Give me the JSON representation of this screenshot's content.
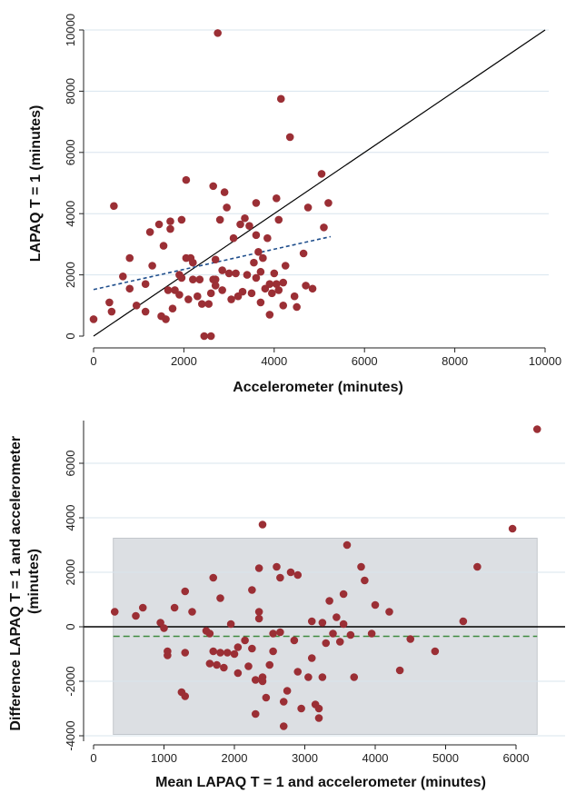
{
  "chart_data": [
    {
      "type": "scatter",
      "title": "",
      "xlabel": "Accelerometer (minutes)",
      "ylabel": "LAPAQ T = 1 (minutes)",
      "xlim": [
        0,
        10000
      ],
      "ylim": [
        0,
        10000
      ],
      "xticks": [
        0,
        2000,
        4000,
        6000,
        8000,
        10000
      ],
      "yticks": [
        0,
        2000,
        4000,
        6000,
        8000,
        10000
      ],
      "grid": true,
      "colors": {
        "points": "#9b2f35",
        "identity_line": "#000000",
        "regression_line": "#1f4e8c"
      },
      "lines": {
        "identity": {
          "x": [
            0,
            10000
          ],
          "y": [
            0,
            10000
          ],
          "style": "solid"
        },
        "regression": {
          "x": [
            0,
            5250
          ],
          "y": [
            1520,
            3250
          ],
          "style": "dashed"
        }
      },
      "points": [
        [
          0,
          550
        ],
        [
          350,
          1100
        ],
        [
          400,
          800
        ],
        [
          450,
          4250
        ],
        [
          650,
          1950
        ],
        [
          800,
          2550
        ],
        [
          800,
          1550
        ],
        [
          950,
          1000
        ],
        [
          1150,
          1700
        ],
        [
          1150,
          800
        ],
        [
          1250,
          3400
        ],
        [
          1300,
          2300
        ],
        [
          1450,
          3650
        ],
        [
          1550,
          2950
        ],
        [
          1500,
          650
        ],
        [
          1600,
          550
        ],
        [
          1650,
          1500
        ],
        [
          1700,
          3750
        ],
        [
          1700,
          3500
        ],
        [
          1750,
          900
        ],
        [
          1800,
          1500
        ],
        [
          1900,
          2000
        ],
        [
          1950,
          3800
        ],
        [
          1950,
          1900
        ],
        [
          2050,
          2550
        ],
        [
          2050,
          5100
        ],
        [
          2100,
          1200
        ],
        [
          2150,
          2550
        ],
        [
          2200,
          2400
        ],
        [
          2200,
          1850
        ],
        [
          2300,
          1300
        ],
        [
          2350,
          1850
        ],
        [
          2400,
          1050
        ],
        [
          2450,
          0
        ],
        [
          2550,
          1050
        ],
        [
          2600,
          0
        ],
        [
          2600,
          1400
        ],
        [
          2650,
          4900
        ],
        [
          2650,
          1850
        ],
        [
          2700,
          1650
        ],
        [
          2700,
          2500
        ],
        [
          2750,
          9900
        ],
        [
          2800,
          3800
        ],
        [
          2850,
          2150
        ],
        [
          2850,
          1500
        ],
        [
          2900,
          4700
        ],
        [
          2950,
          4200
        ],
        [
          3000,
          2050
        ],
        [
          3050,
          1200
        ],
        [
          3100,
          3200
        ],
        [
          3150,
          2050
        ],
        [
          3200,
          1300
        ],
        [
          3250,
          3650
        ],
        [
          3300,
          1450
        ],
        [
          3350,
          3850
        ],
        [
          3400,
          2000
        ],
        [
          3450,
          3600
        ],
        [
          3500,
          1400
        ],
        [
          3550,
          2400
        ],
        [
          3600,
          4350
        ],
        [
          3600,
          3300
        ],
        [
          3650,
          2750
        ],
        [
          3700,
          1100
        ],
        [
          3700,
          2100
        ],
        [
          3750,
          2550
        ],
        [
          3800,
          1550
        ],
        [
          3850,
          3200
        ],
        [
          3900,
          1700
        ],
        [
          3900,
          700
        ],
        [
          3950,
          1400
        ],
        [
          4000,
          2050
        ],
        [
          4050,
          4500
        ],
        [
          4100,
          3800
        ],
        [
          4100,
          1500
        ],
        [
          4150,
          7750
        ],
        [
          4200,
          1750
        ],
        [
          4200,
          1000
        ],
        [
          4250,
          2300
        ],
        [
          4350,
          6500
        ],
        [
          4450,
          1300
        ],
        [
          4500,
          950
        ],
        [
          4650,
          2700
        ],
        [
          4700,
          1650
        ],
        [
          4750,
          4200
        ],
        [
          4850,
          1550
        ],
        [
          5050,
          5300
        ],
        [
          5100,
          3550
        ],
        [
          5200,
          4350
        ],
        [
          2700,
          1850
        ],
        [
          3600,
          1900
        ],
        [
          4050,
          1700
        ],
        [
          1900,
          1350
        ]
      ]
    },
    {
      "type": "scatter",
      "title": "",
      "xlabel": "Mean LAPAQ T = 1 and accelerometer (minutes)",
      "ylabel": "Difference LAPAQ T = 1 and accelerometer (minutes)",
      "xlim": [
        -100,
        6400
      ],
      "ylim": [
        -4200,
        7600
      ],
      "xticks": [
        0,
        1000,
        2000,
        3000,
        4000,
        5000,
        6000
      ],
      "yticks": [
        -4000,
        -2000,
        0,
        2000,
        4000,
        6000
      ],
      "grid": true,
      "colors": {
        "points": "#9b2f35",
        "zero_line": "#000000",
        "mean_line": "#3f8a3f",
        "agreement_band": "#dcdfe3"
      },
      "limits_of_agreement": [
        -3950,
        3250
      ],
      "band_x_range": [
        280,
        6300
      ],
      "mean_difference": -350,
      "zero_line": 0,
      "points": [
        [
          300,
          550
        ],
        [
          600,
          400
        ],
        [
          700,
          700
        ],
        [
          950,
          150
        ],
        [
          1000,
          -50
        ],
        [
          1050,
          -1050
        ],
        [
          1050,
          -900
        ],
        [
          1150,
          700
        ],
        [
          1250,
          -2400
        ],
        [
          1300,
          -2550
        ],
        [
          1300,
          1300
        ],
        [
          1300,
          -950
        ],
        [
          1400,
          550
        ],
        [
          1600,
          -150
        ],
        [
          1650,
          -250
        ],
        [
          1700,
          1800
        ],
        [
          1700,
          -900
        ],
        [
          1750,
          -1400
        ],
        [
          1800,
          -950
        ],
        [
          1800,
          1050
        ],
        [
          1850,
          -1500
        ],
        [
          1900,
          -950
        ],
        [
          1950,
          100
        ],
        [
          2000,
          -1000
        ],
        [
          2050,
          -750
        ],
        [
          2050,
          -1700
        ],
        [
          2150,
          -500
        ],
        [
          2200,
          -1450
        ],
        [
          2250,
          -800
        ],
        [
          2250,
          1350
        ],
        [
          2300,
          -1950
        ],
        [
          2300,
          -3200
        ],
        [
          2350,
          2150
        ],
        [
          2350,
          300
        ],
        [
          2350,
          550
        ],
        [
          2400,
          3750
        ],
        [
          2400,
          -1850
        ],
        [
          2400,
          -2000
        ],
        [
          2450,
          -2600
        ],
        [
          2500,
          -1400
        ],
        [
          2550,
          -900
        ],
        [
          2600,
          2200
        ],
        [
          2650,
          -200
        ],
        [
          2650,
          1800
        ],
        [
          2700,
          -2750
        ],
        [
          2700,
          -3650
        ],
        [
          2750,
          -2350
        ],
        [
          2800,
          2000
        ],
        [
          2850,
          -500
        ],
        [
          2900,
          1900
        ],
        [
          2900,
          -1650
        ],
        [
          2950,
          -3000
        ],
        [
          3050,
          -1850
        ],
        [
          3100,
          -1150
        ],
        [
          3150,
          -2850
        ],
        [
          3200,
          -3000
        ],
        [
          3200,
          -3350
        ],
        [
          3250,
          150
        ],
        [
          3250,
          -1850
        ],
        [
          3300,
          -600
        ],
        [
          3350,
          950
        ],
        [
          3400,
          -250
        ],
        [
          3450,
          350
        ],
        [
          3500,
          -550
        ],
        [
          3550,
          100
        ],
        [
          3550,
          1200
        ],
        [
          3600,
          3000
        ],
        [
          3650,
          -300
        ],
        [
          3700,
          -1850
        ],
        [
          3800,
          2200
        ],
        [
          3850,
          1700
        ],
        [
          3950,
          -250
        ],
        [
          4000,
          800
        ],
        [
          4200,
          550
        ],
        [
          4350,
          -1600
        ],
        [
          4500,
          -450
        ],
        [
          4850,
          -900
        ],
        [
          5250,
          200
        ],
        [
          5450,
          2200
        ],
        [
          5950,
          3600
        ],
        [
          6300,
          7250
        ],
        [
          2550,
          -250
        ],
        [
          3100,
          200
        ],
        [
          1650,
          -1350
        ]
      ]
    }
  ]
}
